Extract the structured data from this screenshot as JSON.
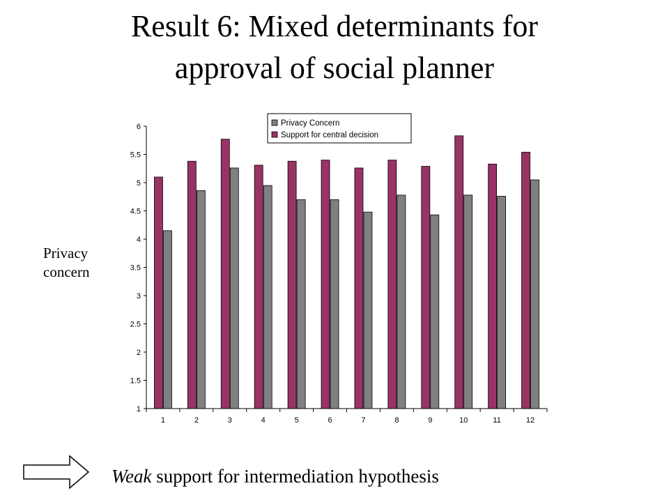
{
  "slide": {
    "title_line1": "Result 6: Mixed determinants for",
    "title_line2": "approval of social planner",
    "side_label_line1": "Privacy",
    "side_label_line2": "concern",
    "conclusion_emphasis": "Weak",
    "conclusion_rest": " support for intermediation hypothesis"
  },
  "colors": {
    "support": "#993366",
    "privacy": "#808080"
  },
  "chart_data": {
    "type": "bar",
    "title": "",
    "xlabel": "",
    "ylabel": "",
    "categories": [
      "1",
      "2",
      "3",
      "4",
      "5",
      "6",
      "7",
      "8",
      "9",
      "10",
      "11",
      "12"
    ],
    "ylim": [
      1,
      6
    ],
    "yticks": [
      "1",
      "1.5",
      "2",
      "2.5",
      "3",
      "3.5",
      "4",
      "4.5",
      "5",
      "5.5",
      "6"
    ],
    "legend_position": "top-right",
    "grid": false,
    "series": [
      {
        "name": "Privacy Concern",
        "values": [
          4.15,
          4.86,
          5.26,
          4.95,
          4.7,
          4.7,
          4.48,
          4.78,
          4.43,
          4.78,
          4.76,
          5.05
        ]
      },
      {
        "name": "Support for central decision",
        "values": [
          5.1,
          5.38,
          5.77,
          5.31,
          5.38,
          5.4,
          5.26,
          5.4,
          5.29,
          5.83,
          5.33,
          5.54
        ]
      }
    ]
  }
}
